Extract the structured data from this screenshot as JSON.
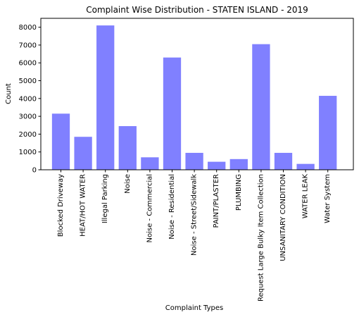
{
  "chart_data": {
    "type": "bar",
    "title": "Complaint Wise Distribution - STATEN ISLAND - 2019",
    "xlabel": "Complaint Types",
    "ylabel": "Count",
    "categories": [
      "Blocked Driveway",
      "HEAT/HOT WATER",
      "Illegal Parking",
      "Noise",
      "Noise - Commercial",
      "Noise - Residential",
      "Noise - Street/Sidewalk",
      "PAINT/PLASTER",
      "PLUMBING",
      "Request Large Bulky Item Collection",
      "UNSANITARY CONDITION",
      "WATER LEAK",
      "Water System"
    ],
    "values": [
      3150,
      1850,
      8100,
      2450,
      700,
      6300,
      950,
      450,
      600,
      7050,
      950,
      330,
      4150
    ],
    "ylim": [
      0,
      8500
    ],
    "yticks": [
      0,
      1000,
      2000,
      3000,
      4000,
      5000,
      6000,
      7000,
      8000
    ],
    "bar_color": "#8080ff",
    "grid": false,
    "legend": "none"
  }
}
